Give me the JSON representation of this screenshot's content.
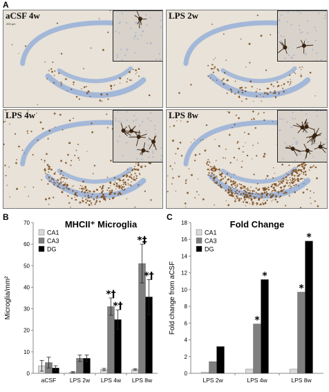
{
  "figure": {
    "panel_letters": {
      "a": "A",
      "b": "B",
      "c": "C"
    },
    "micrographs": [
      {
        "label": "aCSF 4w",
        "scale_text": "200 µm",
        "density": 0.08
      },
      {
        "label": "LPS 2w",
        "scale_text": "",
        "density": 0.15
      },
      {
        "label": "LPS 4w",
        "scale_text": "",
        "density": 0.6
      },
      {
        "label": "LPS 8w",
        "scale_text": "",
        "density": 1.0
      }
    ],
    "colors": {
      "tissue": "#e8e2d8",
      "stain_blue": "#9bb3d8",
      "stain_brown": "#7a4a1c",
      "cell_dark": "#3a2410"
    }
  },
  "chart_data": [
    {
      "type": "bar",
      "title": "MHCII⁺ Microglia",
      "xlabel": "",
      "ylabel": "Microglia/mm²",
      "ylim": [
        0,
        70
      ],
      "yticks": [
        0,
        10,
        20,
        30,
        40,
        50,
        60,
        70
      ],
      "grid": false,
      "legend": "top-left",
      "categories": [
        "aCSF",
        "LPS 2w",
        "LPS 4w",
        "LPS 8w"
      ],
      "series": [
        {
          "name": "CA1",
          "color": "#d9d9d9",
          "values": [
            3.5,
            0.5,
            1.8,
            1.8
          ],
          "errors": [
            2.5,
            0.3,
            0.5,
            0.4
          ]
        },
        {
          "name": "CA3",
          "color": "#7f7f7f",
          "values": [
            5.0,
            7.0,
            31.0,
            51.0
          ],
          "errors": [
            2.5,
            1.5,
            4.0,
            9.0
          ]
        },
        {
          "name": "DG",
          "color": "#000000",
          "values": [
            2.5,
            7.0,
            25.0,
            35.5
          ],
          "errors": [
            1.0,
            1.5,
            4.5,
            8.0
          ]
        }
      ],
      "annotations": [
        {
          "category": "LPS 4w",
          "series": "CA3",
          "text": "*†"
        },
        {
          "category": "LPS 4w",
          "series": "DG",
          "text": "*†"
        },
        {
          "category": "LPS 8w",
          "series": "CA3",
          "text": "*‡"
        },
        {
          "category": "LPS 8w",
          "series": "DG",
          "text": "*†"
        }
      ]
    },
    {
      "type": "bar",
      "title": "Fold Change",
      "xlabel": "",
      "ylabel": "Fold change from aCSF",
      "ylim": [
        0,
        18
      ],
      "yticks": [
        0,
        2,
        4,
        6,
        8,
        10,
        12,
        14,
        16,
        18
      ],
      "grid": false,
      "legend": "top-left",
      "categories": [
        "LPS 2w",
        "LPS 4w",
        "LPS 8w"
      ],
      "series": [
        {
          "name": "CA1",
          "color": "#d9d9d9",
          "values": [
            0.15,
            0.5,
            0.5
          ],
          "errors": []
        },
        {
          "name": "CA3",
          "color": "#7f7f7f",
          "values": [
            1.4,
            5.9,
            9.7
          ],
          "errors": []
        },
        {
          "name": "DG",
          "color": "#000000",
          "values": [
            3.2,
            11.2,
            15.8
          ],
          "errors": []
        }
      ],
      "annotations": [
        {
          "category": "LPS 4w",
          "series": "CA3",
          "text": "*"
        },
        {
          "category": "LPS 4w",
          "series": "DG",
          "text": "*"
        },
        {
          "category": "LPS 8w",
          "series": "CA3",
          "text": "*"
        },
        {
          "category": "LPS 8w",
          "series": "DG",
          "text": "*"
        }
      ]
    }
  ]
}
